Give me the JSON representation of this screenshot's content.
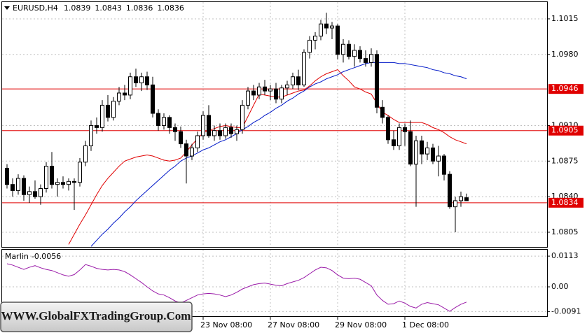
{
  "chart_data": {
    "type": "candlestick",
    "title": "EURUSD,H4",
    "ylim": [
      1.07905,
      1.10315
    ],
    "yticks": [
      1.1015,
      {
        "value": 1.098,
        "label": "1.0980"
      },
      {
        "value": 1.091,
        "label": "1.0910"
      },
      1.0875,
      {
        "value": 1.084,
        "label": "1.0840"
      },
      1.0805
    ],
    "grid": true,
    "candle_colors": {
      "up": "#ffffff",
      "down": "#000000",
      "outline": "#000000"
    },
    "categories": [
      null,
      null,
      null,
      null,
      null,
      null,
      null,
      null,
      null,
      null,
      null,
      null,
      null,
      null,
      null,
      null,
      null,
      null,
      null,
      null,
      null,
      null,
      null,
      null,
      null,
      null,
      null,
      null,
      null,
      null,
      null,
      null,
      null,
      null,
      null,
      "23 Nov 08:00",
      null,
      null,
      null,
      null,
      null,
      null,
      null,
      null,
      null,
      null,
      null,
      "27 Nov 08:00",
      null,
      null,
      null,
      null,
      null,
      null,
      null,
      null,
      null,
      null,
      null,
      "29 Nov 08:00",
      null,
      null,
      null,
      null,
      null,
      null,
      null,
      null,
      null,
      null,
      null,
      "1 Dec 08:00",
      null,
      null,
      null,
      null,
      null,
      null,
      null,
      null,
      null,
      null,
      null
    ],
    "candles": [
      [
        1.0868,
        1.0872,
        1.0848,
        1.0852
      ],
      [
        1.0852,
        1.0858,
        1.084,
        1.0846
      ],
      [
        1.0846,
        1.0862,
        1.0842,
        1.0858
      ],
      [
        1.0858,
        1.0861,
        1.0836,
        1.0842
      ],
      [
        1.0842,
        1.085,
        1.0834,
        1.0845
      ],
      [
        1.0845,
        1.0856,
        1.0838,
        1.084
      ],
      [
        1.084,
        1.0852,
        1.0832,
        1.0848
      ],
      [
        1.0848,
        1.0874,
        1.0844,
        1.087
      ],
      [
        1.087,
        1.0884,
        1.0848,
        1.0852
      ],
      [
        1.0852,
        1.0858,
        1.084,
        1.0854
      ],
      [
        1.0854,
        1.086,
        1.0848,
        1.0852
      ],
      [
        1.0852,
        1.0858,
        1.0846,
        1.0855
      ],
      [
        1.0855,
        1.0858,
        1.0827,
        1.0854
      ],
      [
        1.0854,
        1.0878,
        1.085,
        1.0874
      ],
      [
        1.0874,
        1.0895,
        1.087,
        1.089
      ],
      [
        1.089,
        1.0915,
        1.0885,
        1.091
      ],
      [
        1.091,
        1.0918,
        1.0902,
        1.0908
      ],
      [
        1.0908,
        1.0935,
        1.0904,
        1.093
      ],
      [
        1.093,
        1.094,
        1.0914,
        1.0918
      ],
      [
        1.0918,
        1.0938,
        1.0915,
        1.0934
      ],
      [
        1.0934,
        1.0948,
        1.093,
        1.0942
      ],
      [
        1.0942,
        1.095,
        1.0935,
        1.094
      ],
      [
        1.094,
        1.0962,
        1.0936,
        1.0958
      ],
      [
        1.0958,
        1.0966,
        1.0948,
        1.0952
      ],
      [
        1.0952,
        1.0962,
        1.0944,
        1.0958
      ],
      [
        1.0958,
        1.0963,
        1.0945,
        1.095
      ],
      [
        1.095,
        1.0958,
        1.0918,
        1.0922
      ],
      [
        1.0922,
        1.0926,
        1.0905,
        1.091
      ],
      [
        1.091,
        1.0922,
        1.0906,
        1.0918
      ],
      [
        1.0918,
        1.092,
        1.0902,
        1.0908
      ],
      [
        1.0908,
        1.0912,
        1.0895,
        1.0904
      ],
      [
        1.0904,
        1.0909,
        1.0888,
        1.0892
      ],
      [
        1.0892,
        1.0896,
        1.0853,
        1.088
      ],
      [
        1.088,
        1.0892,
        1.0876,
        1.0888
      ],
      [
        1.0888,
        1.0904,
        1.0884,
        1.09
      ],
      [
        1.09,
        1.0924,
        1.0896,
        1.092
      ],
      [
        1.092,
        1.093,
        1.0898,
        1.09
      ],
      [
        1.09,
        1.091,
        1.0895,
        1.0905
      ],
      [
        1.0905,
        1.0912,
        1.0896,
        1.09
      ],
      [
        1.09,
        1.0912,
        1.0897,
        1.0908
      ],
      [
        1.0908,
        1.0912,
        1.0898,
        1.0902
      ],
      [
        1.0902,
        1.091,
        1.0895,
        1.0906
      ],
      [
        1.0906,
        1.0935,
        1.0902,
        1.093
      ],
      [
        1.093,
        1.0948,
        1.0926,
        1.0944
      ],
      [
        1.0944,
        1.095,
        1.0935,
        1.094
      ],
      [
        1.094,
        1.0952,
        1.0936,
        1.0948
      ],
      [
        1.0948,
        1.0955,
        1.094,
        1.0944
      ],
      [
        1.0944,
        1.095,
        1.0935,
        1.0946
      ],
      [
        1.0946,
        1.0952,
        1.0932,
        1.0936
      ],
      [
        1.0936,
        1.095,
        1.0932,
        1.0947
      ],
      [
        1.0947,
        1.0954,
        1.094,
        1.095
      ],
      [
        1.095,
        1.0962,
        1.0946,
        1.0958
      ],
      [
        1.0958,
        1.0965,
        1.0945,
        1.095
      ],
      [
        1.095,
        1.0985,
        1.0948,
        1.0982
      ],
      [
        1.0982,
        1.0998,
        1.0976,
        1.0994
      ],
      [
        1.0994,
        1.1002,
        1.0985,
        1.0998
      ],
      [
        1.0998,
        1.1014,
        1.0994,
        1.101
      ],
      [
        1.101,
        1.1021,
        1.1,
        1.1006
      ],
      [
        1.1006,
        1.1012,
        1.0995,
        1.1008
      ],
      [
        1.1008,
        1.101,
        1.0975,
        1.098
      ],
      [
        1.098,
        1.0995,
        1.0972,
        1.099
      ],
      [
        1.099,
        1.0994,
        1.0975,
        1.0978
      ],
      [
        1.0978,
        1.099,
        1.0968,
        1.0984
      ],
      [
        1.0984,
        1.0988,
        1.0972,
        1.0976
      ],
      [
        1.0976,
        1.0984,
        1.0968,
        1.0972
      ],
      [
        1.0972,
        1.0986,
        1.0968,
        1.098
      ],
      [
        1.098,
        1.0984,
        1.0922,
        1.0928
      ],
      [
        1.0928,
        1.0935,
        1.0912,
        1.0918
      ],
      [
        1.0918,
        1.092,
        1.0892,
        1.0896
      ],
      [
        1.0896,
        1.0905,
        1.0886,
        1.089
      ],
      [
        1.089,
        1.0912,
        1.0886,
        1.0908
      ],
      [
        1.0908,
        1.0912,
        1.089,
        1.0904
      ],
      [
        1.0904,
        1.0915,
        1.087,
        1.0872
      ],
      [
        1.0872,
        1.09,
        1.083,
        1.0895
      ],
      [
        1.0895,
        1.09,
        1.0872,
        1.0882
      ],
      [
        1.0882,
        1.0894,
        1.0876,
        1.0888
      ],
      [
        1.0888,
        1.0892,
        1.0872,
        1.0875
      ],
      [
        1.0875,
        1.089,
        1.086,
        1.088
      ],
      [
        1.088,
        1.0882,
        1.0856,
        1.0862
      ],
      [
        1.0862,
        1.0865,
        1.0828,
        1.083
      ],
      [
        1.083,
        1.084,
        1.0805,
        1.0836
      ],
      [
        1.0836,
        1.0845,
        1.083,
        1.084
      ],
      [
        1.0839,
        1.0843,
        1.0836,
        1.0836
      ]
    ],
    "moving_averages": [
      {
        "color": "#e00000",
        "values": [
          null,
          null,
          null,
          null,
          null,
          null,
          null,
          null,
          null,
          null,
          null,
          1.0793,
          1.0803,
          1.0813,
          1.0822,
          1.0832,
          1.0842,
          1.0851,
          1.0858,
          1.0864,
          1.087,
          1.0875,
          1.0877,
          1.0879,
          1.088,
          1.0881,
          1.088,
          1.0878,
          1.0876,
          1.0875,
          1.0876,
          1.0878,
          1.0884,
          1.0891,
          1.0897,
          1.0903,
          1.0905,
          1.0907,
          1.0909,
          1.091,
          1.0909,
          1.0908,
          1.0908,
          1.0919,
          1.093,
          1.0941,
          1.094,
          1.0939,
          1.0938,
          1.0938,
          1.094,
          1.0942,
          1.0944,
          1.0945,
          1.0949,
          1.0954,
          1.0958,
          1.0961,
          1.0963,
          1.0965,
          1.0959,
          1.0954,
          1.0948,
          1.0946,
          1.0943,
          1.0941,
          1.0932,
          1.0923,
          1.092,
          1.0916,
          1.0913,
          1.0913,
          1.0913,
          1.0913,
          1.0913,
          1.0911,
          1.0908,
          1.0906,
          1.0903,
          1.0899,
          1.0896,
          1.0894,
          1.0892
        ]
      },
      {
        "color": "#0018c8",
        "values": [
          null,
          null,
          null,
          null,
          null,
          null,
          null,
          null,
          null,
          null,
          null,
          null,
          null,
          null,
          null,
          1.0791,
          1.0797,
          1.0803,
          1.0808,
          1.0814,
          1.0819,
          1.0825,
          1.083,
          1.0836,
          1.0841,
          1.0846,
          1.0851,
          1.0856,
          1.0861,
          1.0866,
          1.087,
          1.0875,
          1.0878,
          1.088,
          1.0883,
          1.0886,
          1.0888,
          1.0891,
          1.0894,
          1.0896,
          1.0899,
          1.0902,
          1.0906,
          1.0909,
          1.0913,
          1.0916,
          1.092,
          1.0923,
          1.0927,
          1.093,
          1.0934,
          1.0937,
          1.0941,
          1.0944,
          1.0948,
          1.0951,
          1.0953,
          1.0956,
          1.0958,
          1.096,
          1.0963,
          1.0965,
          1.0967,
          1.0969,
          1.0971,
          1.0972,
          1.0972,
          1.0972,
          1.0972,
          1.0972,
          1.0971,
          1.0971,
          1.097,
          1.0969,
          1.0968,
          1.0967,
          1.0965,
          1.0964,
          1.0962,
          1.0961,
          1.0959,
          1.0958,
          1.0956
        ]
      }
    ],
    "levels": [
      1.0946,
      1.0905,
      1.0834
    ],
    "level_color": "#e00000",
    "indicator": {
      "type": "line",
      "name": "Marlin",
      "color": "#9a1aa8",
      "ylim": [
        -0.0108,
        0.0139
      ],
      "yticks": [
        0.0113,
        {
          "value": 0,
          "label": "0.00"
        },
        -0.0091
      ],
      "values": [
        0.0085,
        0.008,
        0.0072,
        0.0064,
        0.0072,
        0.0078,
        0.007,
        0.0064,
        0.006,
        0.0052,
        0.0044,
        0.0039,
        0.0045,
        0.0062,
        0.0082,
        0.0076,
        0.0068,
        0.0064,
        0.0062,
        0.0064,
        0.0062,
        0.0056,
        0.0044,
        0.003,
        0.0016,
        0.0,
        -0.0015,
        -0.0026,
        -0.003,
        -0.004,
        -0.0052,
        -0.0059,
        -0.005,
        -0.004,
        -0.003,
        -0.0026,
        -0.0024,
        -0.0026,
        -0.003,
        -0.0036,
        -0.003,
        -0.002,
        -0.0008,
        0.0,
        0.0008,
        0.0012,
        0.0014,
        0.001,
        0.0006,
        0.0004,
        0.0012,
        0.0018,
        0.0024,
        0.0034,
        0.0048,
        0.0062,
        0.0072,
        0.007,
        0.006,
        0.0044,
        0.0032,
        0.003,
        0.0032,
        0.0028,
        0.0016,
        0.0004,
        -0.003,
        -0.005,
        -0.0064,
        -0.0062,
        -0.0052,
        -0.006,
        -0.0072,
        -0.0078,
        -0.0064,
        -0.0058,
        -0.0062,
        -0.0066,
        -0.0078,
        -0.009,
        -0.0076,
        -0.0064,
        -0.0056
      ]
    },
    "watermark": "WWW.GlobalFXTradingGroup.Com"
  }
}
